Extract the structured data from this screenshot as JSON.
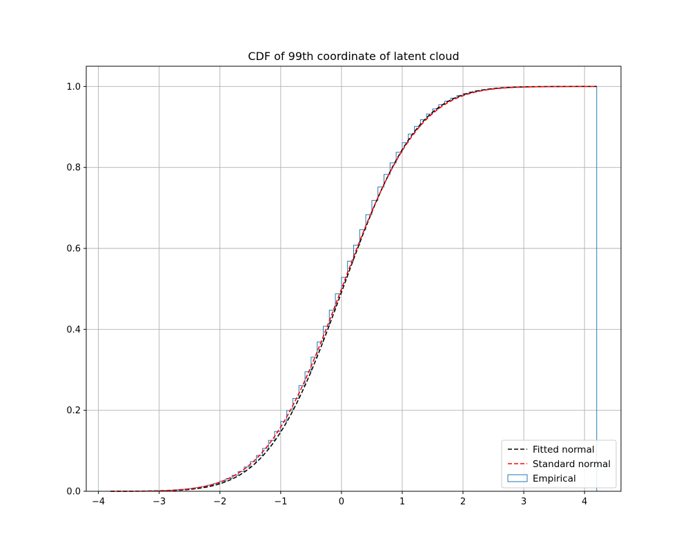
{
  "chart_data": {
    "type": "line",
    "title": "CDF of 99th coordinate of latent cloud",
    "xlabel": "",
    "ylabel": "",
    "xlim": [
      -4.2,
      4.6
    ],
    "ylim": [
      0,
      1.05
    ],
    "xticks": [
      -4,
      -3,
      -2,
      -1,
      0,
      1,
      2,
      3,
      4
    ],
    "xtick_labels": [
      "−4",
      "−3",
      "−2",
      "−1",
      "0",
      "1",
      "2",
      "3",
      "4"
    ],
    "yticks": [
      0,
      0.2,
      0.4,
      0.6,
      0.8,
      1.0
    ],
    "ytick_labels": [
      "0.0",
      "0.2",
      "0.4",
      "0.6",
      "0.8",
      "1.0"
    ],
    "grid": true,
    "legend_position": "lower-right",
    "series": [
      {
        "name": "Fitted normal",
        "kind": "line",
        "style": "dashed",
        "color": "#000000",
        "mean": 0.02,
        "std": 0.97,
        "x_range": [
          -3.8,
          4.2
        ]
      },
      {
        "name": "Standard normal",
        "kind": "line",
        "style": "dashed",
        "color": "#ff0000",
        "mean": 0,
        "std": 1,
        "x_range": [
          -3.8,
          4.2
        ]
      },
      {
        "name": "Empirical",
        "kind": "step-histogram",
        "color": "#1f77b4",
        "bin_start": -3.8,
        "bin_end": 4.2,
        "bin_count": 80
      }
    ]
  }
}
